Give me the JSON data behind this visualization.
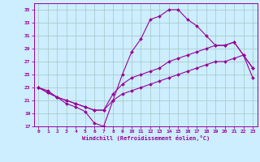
{
  "xlabel": "Windchill (Refroidissement éolien,°C)",
  "bg_color": "#cceeff",
  "line_color": "#990099",
  "grid_color": "#aacccc",
  "xlim": [
    -0.5,
    23.5
  ],
  "ylim": [
    17,
    36
  ],
  "yticks": [
    17,
    19,
    21,
    23,
    25,
    27,
    29,
    31,
    33,
    35
  ],
  "xticks": [
    0,
    1,
    2,
    3,
    4,
    5,
    6,
    7,
    8,
    9,
    10,
    11,
    12,
    13,
    14,
    15,
    16,
    17,
    18,
    19,
    20,
    21,
    22,
    23
  ],
  "series": [
    {
      "x": [
        0,
        1,
        2,
        3,
        4,
        5,
        6,
        7,
        8,
        9,
        10,
        11,
        12,
        13,
        14,
        15,
        16,
        17,
        18,
        19,
        20,
        21,
        22,
        23
      ],
      "y": [
        23,
        22.2,
        21.5,
        21,
        20.5,
        20,
        19.5,
        19.5,
        21,
        22,
        22.5,
        23,
        23.5,
        24,
        24.5,
        25,
        25.5,
        26,
        26.5,
        27,
        27,
        27.5,
        28,
        24.5
      ]
    },
    {
      "x": [
        0,
        1,
        2,
        3,
        4,
        5,
        6,
        7,
        8,
        9,
        10,
        11,
        12,
        13,
        14,
        15,
        16,
        17,
        18,
        19,
        20,
        21,
        22,
        23
      ],
      "y": [
        23,
        22.2,
        21.5,
        21,
        20.5,
        20,
        19.5,
        19.5,
        22,
        23.5,
        24.5,
        25,
        25.5,
        26,
        27,
        27.5,
        28,
        28.5,
        29,
        29.5,
        29.5,
        30,
        28,
        26
      ]
    },
    {
      "x": [
        0,
        1,
        2,
        3,
        4,
        5,
        6,
        7,
        8,
        9,
        10,
        11,
        12,
        13,
        14,
        15,
        16,
        17,
        18,
        19,
        20,
        21,
        22,
        23
      ],
      "y": [
        23,
        22.5,
        21.5,
        20.5,
        20,
        19.3,
        17.5,
        17,
        21,
        25,
        28.5,
        30.5,
        33.5,
        34,
        35,
        35,
        33.5,
        32.5,
        31,
        29.5,
        29.5,
        30,
        28,
        26
      ]
    }
  ]
}
